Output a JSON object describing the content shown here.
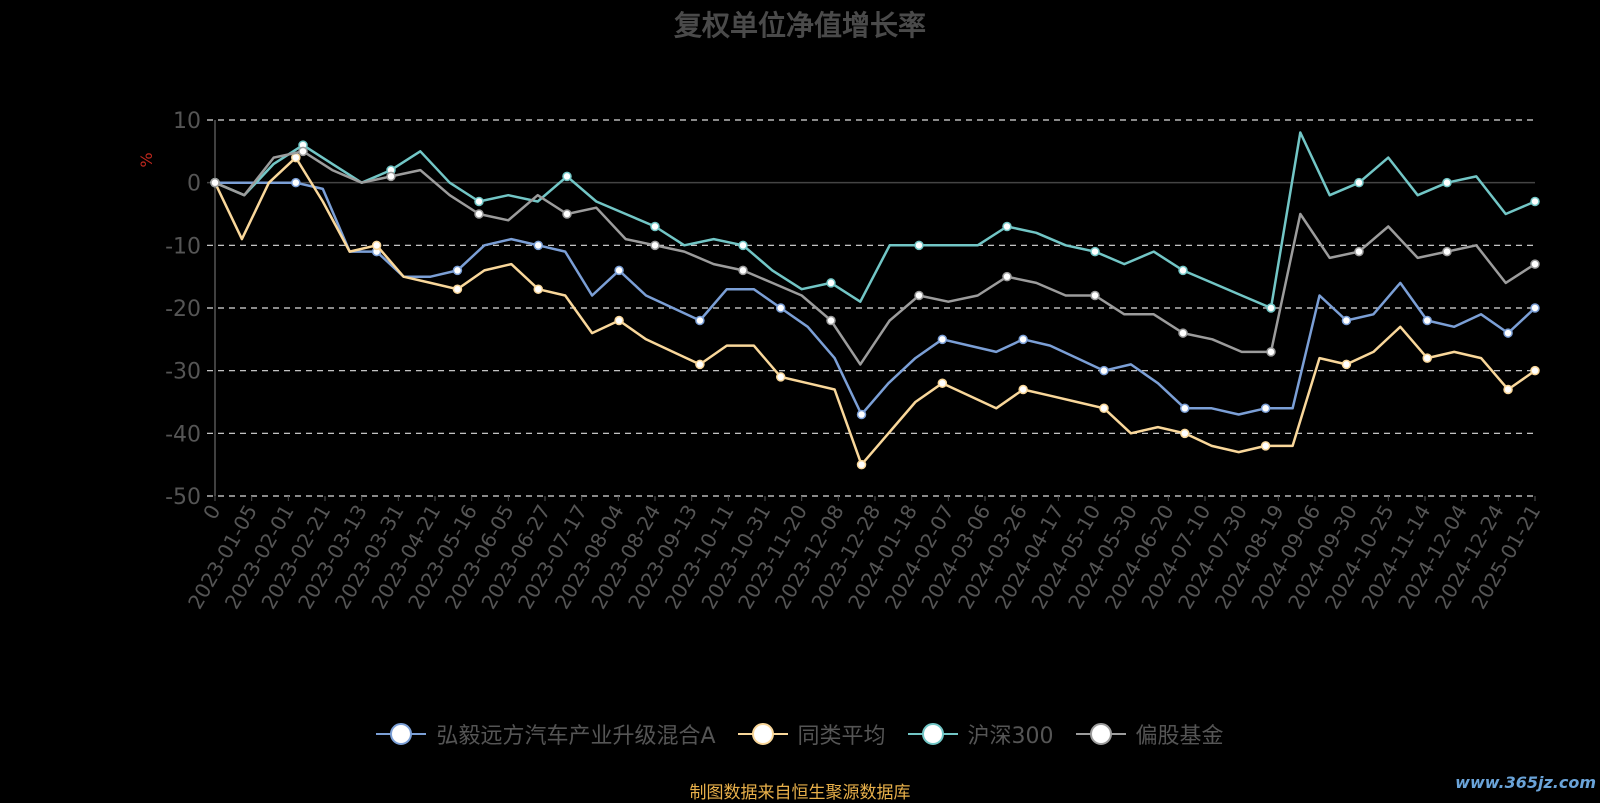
{
  "chart_data": {
    "type": "line",
    "title": "复权单位净值增长率",
    "ylabel": "%",
    "ylim": [
      -50,
      10
    ],
    "yticks": [
      10,
      0,
      -10,
      -20,
      -30,
      -40,
      -50
    ],
    "grid": true,
    "legend_position": "bottom",
    "x_tick_labels": [
      "0",
      "2023-01-05",
      "2023-02-01",
      "2023-02-21",
      "2023-03-13",
      "2023-03-31",
      "2023-04-21",
      "2023-05-16",
      "2023-06-05",
      "2023-06-27",
      "2023-07-17",
      "2023-08-04",
      "2023-08-24",
      "2023-09-13",
      "2023-10-11",
      "2023-10-31",
      "2023-11-20",
      "2023-12-08",
      "2023-12-28",
      "2024-01-18",
      "2024-02-07",
      "2024-03-06",
      "2024-03-26",
      "2024-04-17",
      "2024-05-10",
      "2024-05-30",
      "2024-06-20",
      "2024-07-10",
      "2024-07-30",
      "2024-08-19",
      "2024-09-06",
      "2024-09-30",
      "2024-10-25",
      "2024-11-14",
      "2024-12-04",
      "2024-12-24",
      "2025-01-21"
    ],
    "series": [
      {
        "name": "弘毅远方汽车产业升级混合A",
        "color": "#7b9fd6",
        "values": [
          0,
          0,
          0,
          0,
          -1,
          -11,
          -11,
          -15,
          -15,
          -14,
          -10,
          -9,
          -10,
          -11,
          -18,
          -14,
          -18,
          -20,
          -22,
          -17,
          -17,
          -20,
          -23,
          -28,
          -37,
          -32,
          -28,
          -25,
          -26,
          -27,
          -25,
          -26,
          -28,
          -30,
          -29,
          -32,
          -36,
          -36,
          -37,
          -36,
          -36,
          -18,
          -22,
          -21,
          -16,
          -22,
          -23,
          -21,
          -24,
          -20
        ]
      },
      {
        "name": "同类平均",
        "color": "#f9d79a",
        "values": [
          0,
          -9,
          0,
          4,
          -3,
          -11,
          -10,
          -15,
          -16,
          -17,
          -14,
          -13,
          -17,
          -18,
          -24,
          -22,
          -25,
          -27,
          -29,
          -26,
          -26,
          -31,
          -32,
          -33,
          -45,
          -40,
          -35,
          -32,
          -34,
          -36,
          -33,
          -34,
          -35,
          -36,
          -40,
          -39,
          -40,
          -42,
          -43,
          -42,
          -42,
          -28,
          -29,
          -27,
          -23,
          -28,
          -27,
          -28,
          -33,
          -30
        ]
      },
      {
        "name": "沪深300",
        "color": "#72c6c6",
        "values": [
          0,
          -2,
          3,
          6,
          3,
          0,
          2,
          5,
          0,
          -3,
          -2,
          -3,
          1,
          -3,
          -5,
          -7,
          -10,
          -9,
          -10,
          -14,
          -17,
          -16,
          -19,
          -10,
          -10,
          -10,
          -10,
          -7,
          -8,
          -10,
          -11,
          -13,
          -11,
          -14,
          -16,
          -18,
          -20,
          8,
          -2,
          0,
          4,
          -2,
          0,
          1,
          -5,
          -3
        ]
      },
      {
        "name": "偏股基金",
        "color": "#9c9c9c",
        "values": [
          0,
          -2,
          4,
          5,
          2,
          0,
          1,
          2,
          -2,
          -5,
          -6,
          -2,
          -5,
          -4,
          -9,
          -10,
          -11,
          -13,
          -14,
          -16,
          -18,
          -22,
          -29,
          -22,
          -18,
          -19,
          -18,
          -15,
          -16,
          -18,
          -18,
          -21,
          -21,
          -24,
          -25,
          -27,
          -27,
          -5,
          -12,
          -11,
          -7,
          -12,
          -11,
          -10,
          -16,
          -13
        ]
      }
    ]
  },
  "source_note": "制图数据来自恒生聚源数据库",
  "watermark": "www.365jz.com"
}
